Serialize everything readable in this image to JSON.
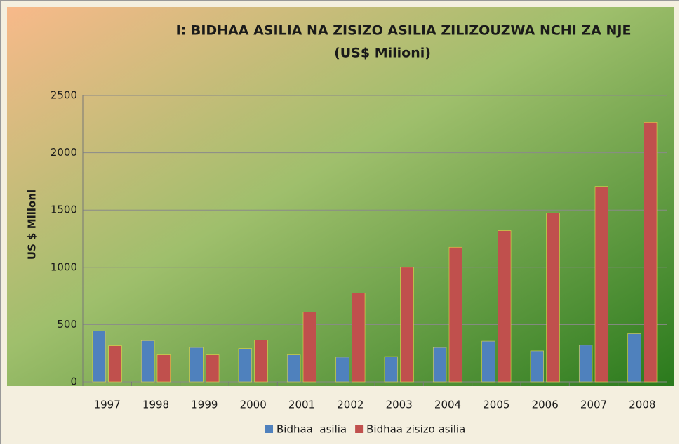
{
  "chart_data": {
    "type": "bar",
    "title": "I:  BIDHAA ASILIA NA ZISIZO ASILIA ZILIZOUZWA NCHI ZA NJE",
    "subtitle": "(US$ Milioni)",
    "y_label": "US $ Milioni",
    "categories": [
      "1997",
      "1998",
      "1999",
      "2000",
      "2001",
      "2002",
      "2003",
      "2004",
      "2005",
      "2006",
      "2007",
      "2008"
    ],
    "series": [
      {
        "name": "Bidhaa  asilia",
        "color": "#4f81bd",
        "values": [
          445,
          360,
          300,
          290,
          235,
          215,
          220,
          300,
          355,
          270,
          320,
          420
        ]
      },
      {
        "name": "Bidhaa zisizo asilia",
        "color": "#c0504d",
        "values": [
          315,
          235,
          235,
          365,
          610,
          775,
          1000,
          1175,
          1320,
          1475,
          1705,
          2265
        ]
      }
    ],
    "ylim": [
      0,
      2500
    ],
    "yticks": [
      0,
      500,
      1000,
      1500,
      2000,
      2500
    ],
    "grid": true,
    "legend": "bottom"
  }
}
